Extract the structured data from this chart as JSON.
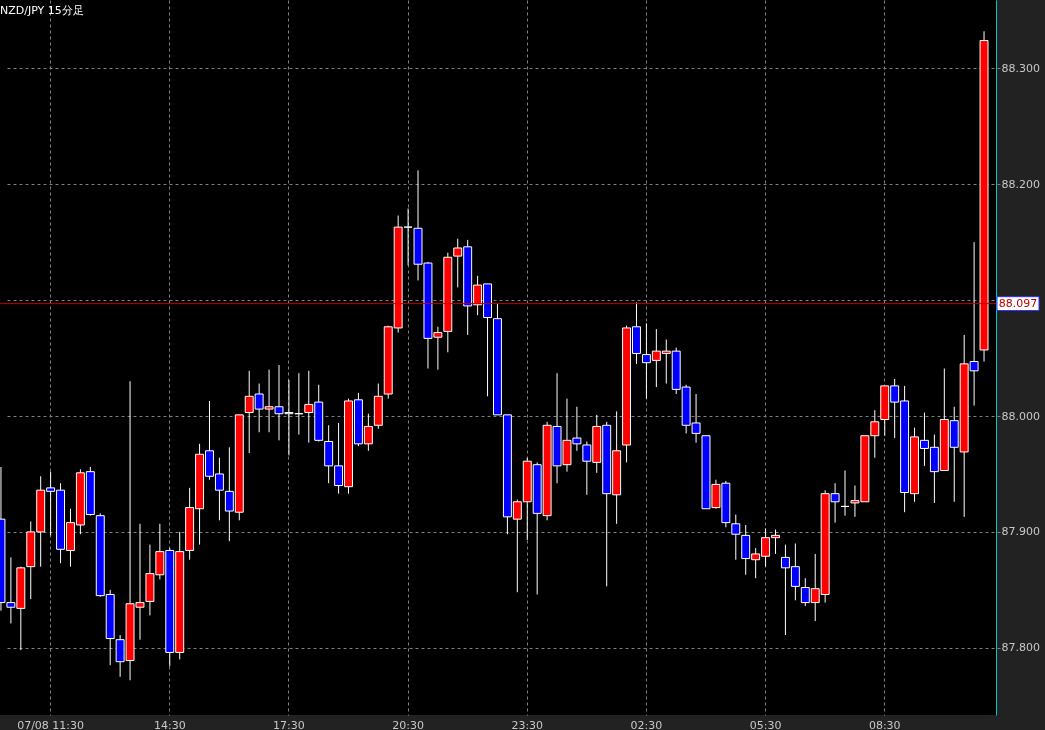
{
  "chart_data": {
    "type": "candlestick",
    "title": "NZD/JPY 15分足",
    "categories": [
      null,
      null,
      null,
      null,
      null,
      "07/08 11:30",
      null,
      null,
      null,
      null,
      null,
      null,
      null,
      null,
      null,
      null,
      null,
      "14:30",
      null,
      null,
      null,
      null,
      null,
      null,
      null,
      null,
      null,
      null,
      null,
      "17:30",
      null,
      null,
      null,
      null,
      null,
      null,
      null,
      null,
      null,
      null,
      null,
      "20:30",
      null,
      null,
      null,
      null,
      null,
      null,
      null,
      null,
      null,
      null,
      null,
      "23:30",
      null,
      null,
      null,
      null,
      null,
      null,
      null,
      null,
      null,
      null,
      null,
      "02:30",
      null,
      null,
      null,
      null,
      null,
      null,
      null,
      null,
      null,
      null,
      null,
      "05:30",
      null,
      null,
      null,
      null,
      null,
      null,
      null,
      null,
      null,
      null,
      null,
      "08:30",
      null,
      null,
      null,
      null,
      null,
      null,
      null,
      null,
      null,
      null
    ],
    "ohlc": [
      [
        87.911,
        87.956,
        87.832,
        87.839
      ],
      [
        87.839,
        87.878,
        87.821,
        87.835
      ],
      [
        87.834,
        87.87,
        87.798,
        87.869
      ],
      [
        87.87,
        87.909,
        87.842,
        87.9
      ],
      [
        87.9,
        87.948,
        87.87,
        87.936
      ],
      [
        87.938,
        87.952,
        87.897,
        87.935
      ],
      [
        87.936,
        87.942,
        87.873,
        87.885
      ],
      [
        87.884,
        87.92,
        87.87,
        87.908
      ],
      [
        87.906,
        87.954,
        87.898,
        87.951
      ],
      [
        87.952,
        87.956,
        87.914,
        87.915
      ],
      [
        87.914,
        87.916,
        87.844,
        87.845
      ],
      [
        87.846,
        87.85,
        87.785,
        87.808
      ],
      [
        87.807,
        87.811,
        87.775,
        87.788
      ],
      [
        87.789,
        88.03,
        87.772,
        87.838
      ],
      [
        87.835,
        87.907,
        87.807,
        87.839
      ],
      [
        87.84,
        87.889,
        87.828,
        87.864
      ],
      [
        87.863,
        87.907,
        87.859,
        87.883
      ],
      [
        87.884,
        87.886,
        87.784,
        87.796
      ],
      [
        87.796,
        87.9,
        87.79,
        87.883
      ],
      [
        87.884,
        87.938,
        87.876,
        87.921
      ],
      [
        87.92,
        87.976,
        87.889,
        87.967
      ],
      [
        87.97,
        88.013,
        87.945,
        87.948
      ],
      [
        87.95,
        87.964,
        87.91,
        87.936
      ],
      [
        87.935,
        87.973,
        87.892,
        87.918
      ],
      [
        87.917,
        88.001,
        87.91,
        88.001
      ],
      [
        88.003,
        88.039,
        87.968,
        88.017
      ],
      [
        88.019,
        88.028,
        87.986,
        88.006
      ],
      [
        88.006,
        88.04,
        87.986,
        88.008
      ],
      [
        88.008,
        88.044,
        87.979,
        88.002
      ],
      [
        88.003,
        88.031,
        87.966,
        88.002
      ],
      [
        88.002,
        88.037,
        87.984,
        88.002
      ],
      [
        88.003,
        88.039,
        87.977,
        88.01
      ],
      [
        88.012,
        88.027,
        87.978,
        87.979
      ],
      [
        87.978,
        87.992,
        87.942,
        87.957
      ],
      [
        87.957,
        87.994,
        87.933,
        87.94
      ],
      [
        87.939,
        88.015,
        87.933,
        88.013
      ],
      [
        88.014,
        88.02,
        87.974,
        87.976
      ],
      [
        87.976,
        88.002,
        87.97,
        87.991
      ],
      [
        87.992,
        88.028,
        87.989,
        88.017
      ],
      [
        88.019,
        88.078,
        88.015,
        88.077
      ],
      [
        88.076,
        88.173,
        88.072,
        88.163
      ],
      [
        88.163,
        88.179,
        88.13,
        88.163
      ],
      [
        88.162,
        88.212,
        88.117,
        88.131
      ],
      [
        88.132,
        88.133,
        88.041,
        88.067
      ],
      [
        88.068,
        88.077,
        88.04,
        88.072
      ],
      [
        88.073,
        88.141,
        88.055,
        88.137
      ],
      [
        88.138,
        88.153,
        88.111,
        88.145
      ],
      [
        88.146,
        88.152,
        88.07,
        88.095
      ],
      [
        88.096,
        88.121,
        88.087,
        88.113
      ],
      [
        88.114,
        88.114,
        88.017,
        88.085
      ],
      [
        88.084,
        88.097,
        88.001,
        88.001
      ],
      [
        88.001,
        88.001,
        87.898,
        87.913
      ],
      [
        87.911,
        87.928,
        87.848,
        87.926
      ],
      [
        87.926,
        87.964,
        87.893,
        87.961
      ],
      [
        87.958,
        87.96,
        87.846,
        87.916
      ],
      [
        87.914,
        87.995,
        87.91,
        87.992
      ],
      [
        87.991,
        88.037,
        87.942,
        87.957
      ],
      [
        87.958,
        88.015,
        87.952,
        87.979
      ],
      [
        87.981,
        88.008,
        87.97,
        87.976
      ],
      [
        87.975,
        87.978,
        87.932,
        87.961
      ],
      [
        87.96,
        88.001,
        87.951,
        87.991
      ],
      [
        87.992,
        87.995,
        87.853,
        87.933
      ],
      [
        87.932,
        88.004,
        87.907,
        87.97
      ],
      [
        87.975,
        88.078,
        87.96,
        88.076
      ],
      [
        88.077,
        88.098,
        88.045,
        88.054
      ],
      [
        88.053,
        88.08,
        88.015,
        88.046
      ],
      [
        88.048,
        88.075,
        88.025,
        88.056
      ],
      [
        88.054,
        88.066,
        88.028,
        88.056
      ],
      [
        88.056,
        88.059,
        88.019,
        88.023
      ],
      [
        88.025,
        88.027,
        87.985,
        87.992
      ],
      [
        87.994,
        88.019,
        87.977,
        87.985
      ],
      [
        87.983,
        87.983,
        87.92,
        87.92
      ],
      [
        87.921,
        87.945,
        87.92,
        87.941
      ],
      [
        87.942,
        87.944,
        87.904,
        87.908
      ],
      [
        87.907,
        87.915,
        87.876,
        87.898
      ],
      [
        87.897,
        87.906,
        87.863,
        87.877
      ],
      [
        87.876,
        87.886,
        87.86,
        87.881
      ],
      [
        87.879,
        87.903,
        87.87,
        87.895
      ],
      [
        87.895,
        87.902,
        87.881,
        87.897
      ],
      [
        87.878,
        87.889,
        87.811,
        87.869
      ],
      [
        87.87,
        87.89,
        87.841,
        87.853
      ],
      [
        87.852,
        87.86,
        87.836,
        87.839
      ],
      [
        87.839,
        87.881,
        87.823,
        87.851
      ],
      [
        87.846,
        87.936,
        87.839,
        87.933
      ],
      [
        87.933,
        87.942,
        87.908,
        87.926
      ],
      [
        87.922,
        87.953,
        87.914,
        87.922
      ],
      [
        87.925,
        87.94,
        87.913,
        87.927
      ],
      [
        87.926,
        87.983,
        87.926,
        87.983
      ],
      [
        87.983,
        88.005,
        87.964,
        87.995
      ],
      [
        87.997,
        88.026,
        87.983,
        88.026
      ],
      [
        88.026,
        88.032,
        87.981,
        88.012
      ],
      [
        88.013,
        88.026,
        87.917,
        87.934
      ],
      [
        87.933,
        87.99,
        87.926,
        87.982
      ],
      [
        87.979,
        88.003,
        87.957,
        87.972
      ],
      [
        87.973,
        87.984,
        87.925,
        87.952
      ],
      [
        87.953,
        88.041,
        87.953,
        87.997
      ],
      [
        87.996,
        88.008,
        87.926,
        87.973
      ],
      [
        87.969,
        88.07,
        87.913,
        88.045
      ],
      [
        88.047,
        88.15,
        88.009,
        88.039
      ],
      [
        88.057,
        88.332,
        88.047,
        88.324
      ]
    ],
    "colors": [
      "#0000ff",
      "#0000ff",
      "#ff0000",
      "#ff0000",
      "#ff0000",
      "#0000ff",
      "#0000ff",
      "#ff0000",
      "#ff0000",
      "#0000ff",
      "#0000ff",
      "#0000ff",
      "#0000ff",
      "#ff0000",
      "#ff0000",
      "#ff0000",
      "#ff0000",
      "#0000ff",
      "#ff0000",
      "#ff0000",
      "#ff0000",
      "#0000ff",
      "#0000ff",
      "#0000ff",
      "#ff0000",
      "#ff0000",
      "#0000ff",
      "#ff0000",
      "#0000ff",
      "#0000ff",
      "#ffffff",
      "#ff0000",
      "#0000ff",
      "#0000ff",
      "#0000ff",
      "#ff0000",
      "#0000ff",
      "#ff0000",
      "#ff0000",
      "#ff0000",
      "#ff0000",
      "#ffffff",
      "#0000ff",
      "#0000ff",
      "#ff0000",
      "#ff0000",
      "#ff0000",
      "#0000ff",
      "#ff0000",
      "#0000ff",
      "#0000ff",
      "#0000ff",
      "#ff0000",
      "#ff0000",
      "#0000ff",
      "#ff0000",
      "#0000ff",
      "#ff0000",
      "#0000ff",
      "#0000ff",
      "#ff0000",
      "#0000ff",
      "#ff0000",
      "#ff0000",
      "#0000ff",
      "#0000ff",
      "#ff0000",
      "#ff0000",
      "#0000ff",
      "#0000ff",
      "#0000ff",
      "#0000ff",
      "#ff0000",
      "#0000ff",
      "#0000ff",
      "#0000ff",
      "#ff0000",
      "#ff0000",
      "#ff0000",
      "#0000ff",
      "#0000ff",
      "#0000ff",
      "#ff0000",
      "#ff0000",
      "#0000ff",
      "#ffffff",
      "#ff0000",
      "#ff0000",
      "#ff0000",
      "#ff0000",
      "#0000ff",
      "#0000ff",
      "#ff0000",
      "#0000ff",
      "#0000ff",
      "#ff0000",
      "#0000ff",
      "#ff0000",
      "#0000ff",
      "#ff0000"
    ],
    "ylim": [
      87.742,
      88.359
    ],
    "yticks": [
      {
        "value": 87.8,
        "label": "87.800"
      },
      {
        "value": 87.9,
        "label": "87.900"
      },
      {
        "value": 88.0,
        "label": "88.000"
      },
      {
        "value": 88.1,
        "label": null
      },
      {
        "value": 88.2,
        "label": "88.200"
      },
      {
        "value": 88.3,
        "label": "88.300"
      }
    ],
    "ref_lines": [
      {
        "axis": "y",
        "value": 88.097,
        "label": "88.097",
        "color": "#c00000"
      }
    ],
    "grid": true
  }
}
